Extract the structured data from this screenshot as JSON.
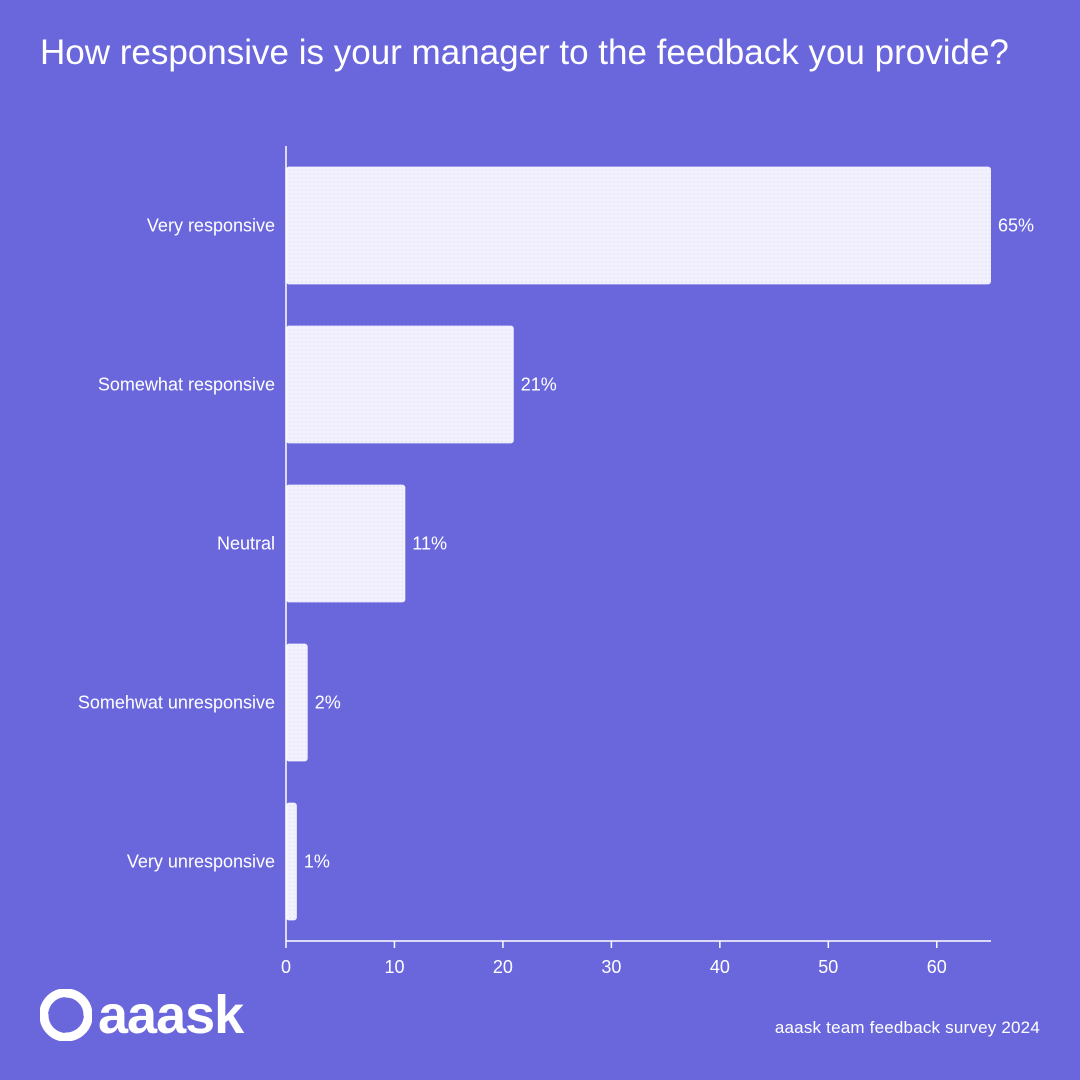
{
  "chart_data": {
    "type": "bar",
    "orientation": "horizontal",
    "title": "How responsive is your manager to the feedback you provide?",
    "categories": [
      "Very responsive",
      "Somewhat responsive",
      "Neutral",
      "Somehwat unresponsive",
      "Very unresponsive"
    ],
    "values": [
      65,
      21,
      11,
      2,
      1
    ],
    "value_labels": [
      "65%",
      "21%",
      "11%",
      "2%",
      "1%"
    ],
    "xticks": [
      0,
      10,
      20,
      30,
      40,
      50,
      60
    ],
    "xlim": [
      0,
      65
    ],
    "xlabel": "",
    "ylabel": "",
    "grid": false,
    "bar_color": "#f1f0fc",
    "background": "#6a67dd"
  },
  "brand": {
    "name": "aaask"
  },
  "footer": {
    "source": "aaask team feedback survey 2024"
  }
}
